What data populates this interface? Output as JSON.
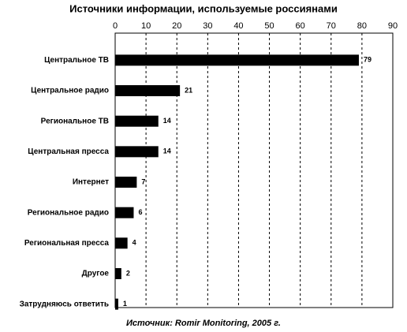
{
  "chart_data": {
    "type": "bar",
    "orientation": "horizontal",
    "title": "Источники информации, используемые россиянами",
    "categories": [
      "Центральное ТВ",
      "Центральное радио",
      "Региональное ТВ",
      "Центральная пресса",
      "Интернет",
      "Региональное радио",
      "Региональная пресса",
      "Другое",
      "Затрудняюсь ответить"
    ],
    "values": [
      79,
      21,
      14,
      14,
      7,
      6,
      4,
      2,
      1
    ],
    "color": "#000000",
    "xlim": [
      0,
      90
    ],
    "xticks": [
      0,
      10,
      20,
      30,
      40,
      50,
      60,
      70,
      80,
      90
    ],
    "grid": true,
    "source": "Источник: Romir Monitoring, 2005 г."
  }
}
